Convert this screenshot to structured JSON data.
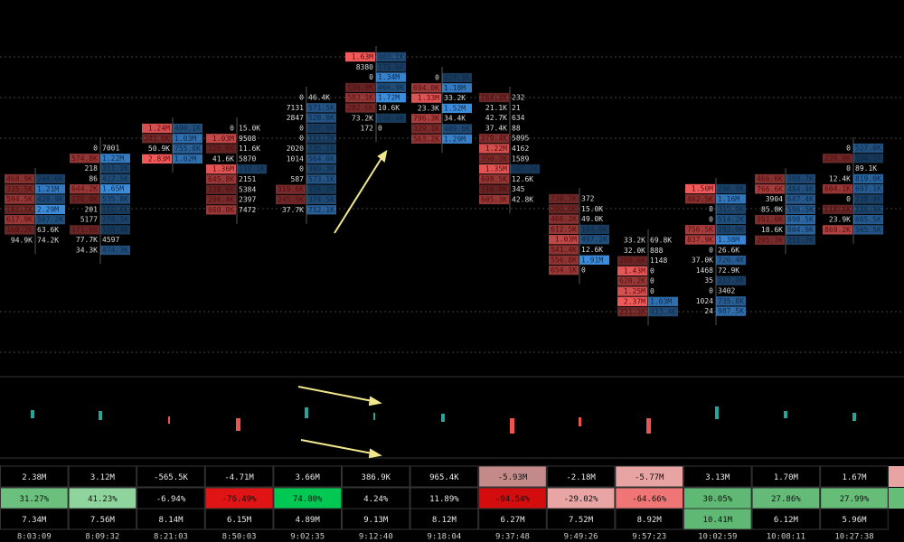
{
  "clusters": [
    {
      "rows": [
        [
          "468.9K",
          "244.6K"
        ],
        [
          "335.5K",
          "1.21M"
        ],
        [
          "594.5K",
          "429.9K"
        ],
        [
          "192.7K",
          "2.29M"
        ],
        [
          "617.9K",
          "507.2K"
        ],
        [
          "168.2K",
          "63.6K"
        ],
        [
          "94.9K",
          "74.2K"
        ]
      ]
    },
    {
      "rows": [
        [
          "0",
          "7001"
        ],
        [
          "574.8K",
          "1.22M"
        ],
        [
          "218",
          "311.1K"
        ],
        [
          "86",
          "422.5K"
        ],
        [
          "644.2K",
          "1.65M"
        ],
        [
          "170.8K",
          "535.8K"
        ],
        [
          "201",
          "152.6K"
        ],
        [
          "5177",
          "278.1K"
        ],
        [
          "171.6K",
          "119.4K"
        ],
        [
          "77.7K",
          "4597"
        ],
        [
          "34.3K",
          "474.3K"
        ]
      ]
    },
    {
      "rows": [
        [
          "1.24M",
          "490.1K"
        ],
        [
          "241.6K",
          "1.03M"
        ],
        [
          "50.9K",
          "755.6K"
        ],
        [
          "2.83M",
          "1.02M"
        ]
      ]
    },
    {
      "rows": [
        [
          "0",
          "15.0K"
        ],
        [
          "1.03M",
          "9508"
        ],
        [
          "120.0K",
          "11.6K"
        ],
        [
          "41.6K",
          "5870"
        ],
        [
          "1.36M",
          "218.1K"
        ],
        [
          "645.8K",
          "2151"
        ],
        [
          "138.6K",
          "5384"
        ],
        [
          "296.4K",
          "2397"
        ],
        [
          "660.8K",
          "7472"
        ]
      ]
    },
    {
      "rows": [
        [
          "0",
          "46.4K"
        ],
        [
          "7131",
          "571.5K"
        ],
        [
          "2847",
          "528.0K"
        ],
        [
          "0",
          "187.6K"
        ],
        [
          "0",
          "181.7K"
        ],
        [
          "2020",
          "235.1K"
        ],
        [
          "1014",
          "564.0K"
        ],
        [
          "0",
          "309.3K"
        ],
        [
          "587",
          "573.1K"
        ],
        [
          "319.6K",
          "156.2K"
        ],
        [
          "245.5K",
          "374.5K"
        ],
        [
          "37.7K",
          "752.1K"
        ]
      ]
    },
    {
      "rows": [
        [
          "1.63M",
          "403.1K"
        ],
        [
          "8380",
          "175.8K"
        ],
        [
          "0",
          "1.34M"
        ],
        [
          "130.9K",
          "466.9K"
        ],
        [
          "583.1K",
          "1.72M"
        ],
        [
          "282.6K",
          "10.6K"
        ],
        [
          "73.2K",
          "140.4K"
        ],
        [
          "172",
          "0"
        ]
      ]
    },
    {
      "rows": [
        [
          "0",
          "124.3K"
        ],
        [
          "694.0K",
          "1.18M"
        ],
        [
          "1.33M",
          "33.2K"
        ],
        [
          "23.3K",
          "1.52M"
        ],
        [
          "796.3K",
          "34.4K"
        ],
        [
          "329.1K",
          "409.6K"
        ],
        [
          "563.2K",
          "1.29M"
        ]
      ]
    },
    {
      "rows": [
        [
          "164.3K",
          "232"
        ],
        [
          "21.1K",
          "21"
        ],
        [
          "42.7K",
          "634"
        ],
        [
          "37.4K",
          "88"
        ],
        [
          "379.4K",
          "5895"
        ],
        [
          "1.22M",
          "4162"
        ],
        [
          "350.2K",
          "1589"
        ],
        [
          "1.35M",
          "102.7K"
        ],
        [
          "608.5K",
          "12.6K"
        ],
        [
          "116.0K",
          "345"
        ],
        [
          "605.3K",
          "42.8K"
        ]
      ]
    },
    {
      "rows": [
        [
          "230.7K",
          "372"
        ],
        [
          "200.6K",
          "15.0K"
        ],
        [
          "466.2K",
          "49.0K"
        ],
        [
          "612.5K",
          "184.9K"
        ],
        [
          "1.03M",
          "497.2K"
        ],
        [
          "541.4K",
          "12.6K"
        ],
        [
          "556.8K",
          "1.91M"
        ],
        [
          "654.1K",
          "0"
        ]
      ]
    },
    {
      "rows": [
        [
          "33.2K",
          "69.8K"
        ],
        [
          "32.0K",
          "888"
        ],
        [
          "200.6K",
          "1148"
        ],
        [
          "1.43M",
          "0"
        ],
        [
          "620.2K",
          "0"
        ],
        [
          "1.25M",
          "0"
        ],
        [
          "2.37M",
          "1.03M"
        ],
        [
          "251.1K",
          "413.4K"
        ]
      ]
    },
    {
      "rows": [
        [
          "1.50M",
          "290.9K"
        ],
        [
          "462.5K",
          "1.16M"
        ],
        [
          "0",
          "315.9K"
        ],
        [
          "0",
          "514.2K"
        ],
        [
          "756.5K",
          "292.9K"
        ],
        [
          "837.9K",
          "1.38M"
        ],
        [
          "0",
          "26.6K"
        ],
        [
          "37.0K",
          "726.4K"
        ],
        [
          "1468",
          "72.9K"
        ],
        [
          "35",
          "217.9K"
        ],
        [
          "0",
          "3402"
        ],
        [
          "1024",
          "735.8K"
        ],
        [
          "24",
          "987.5K"
        ]
      ]
    },
    {
      "rows": [
        [
          "466.6K",
          "388.7K"
        ],
        [
          "766.6K",
          "484.4K"
        ],
        [
          "3904",
          "647.4K"
        ],
        [
          "85.8K",
          "596.5K"
        ],
        [
          "391.0K",
          "898.5K"
        ],
        [
          "18.6K",
          "804.9K"
        ],
        [
          "295.7K",
          "211.7K"
        ]
      ]
    },
    {
      "rows": [
        [
          "0",
          "527.0K"
        ],
        [
          "220.0K",
          "104.5K"
        ],
        [
          "0",
          "89.1K"
        ],
        [
          "12.4K",
          "819.0K"
        ],
        [
          "604.1K",
          "697.1K"
        ],
        [
          "0",
          "238.4K"
        ],
        [
          "118.6K",
          "286.5K"
        ],
        [
          "23.9K",
          "665.5K"
        ],
        [
          "869.2K",
          "565.5K"
        ]
      ]
    }
  ],
  "summary": {
    "rows": [
      {
        "cells": [
          "2.38M",
          "3.12M",
          "-565.5K",
          "-4.71M",
          "3.66M",
          "386.9K",
          "965.4K",
          "-5.93M",
          "-2.18M",
          "-5.77M",
          "3.13M",
          "1.70M",
          "1.67M"
        ],
        "colors": [
          "#000000",
          "#000000",
          "#000000",
          "#000000",
          "#000000",
          "#000000",
          "#000000",
          "#c48a8a",
          "#000000",
          "#e8a3a3",
          "#000000",
          "#000000",
          "#000000"
        ]
      },
      {
        "cells": [
          "31.27%",
          "41.23%",
          "-6.94%",
          "-76.49%",
          "74.80%",
          "4.24%",
          "11.89%",
          "-94.54%",
          "-29.02%",
          "-64.66%",
          "30.05%",
          "27.86%",
          "27.99%"
        ],
        "colors": [
          "#6cc07d",
          "#8fd49c",
          "#000000",
          "#e01414",
          "#00c853",
          "#000000",
          "#000000",
          "#d30d0d",
          "#e9a4a4",
          "#f07676",
          "#5fb873",
          "#64bb77",
          "#66bd78"
        ]
      },
      {
        "cells": [
          "7.34M",
          "7.56M",
          "8.14M",
          "6.15M",
          "4.89M",
          "9.13M",
          "8.12M",
          "6.27M",
          "7.52M",
          "8.92M",
          "10.41M",
          "6.12M",
          "5.96M"
        ],
        "colors": [
          "#000000",
          "#000000",
          "#000000",
          "#000000",
          "#000000",
          "#000000",
          "#000000",
          "#000000",
          "#000000",
          "#000000",
          "#5fb873",
          "#000000",
          "#000000"
        ]
      }
    ],
    "times": [
      "8:03:09",
      "8:09:32",
      "8:21:03",
      "8:50:03",
      "9:02:35",
      "9:12:40",
      "9:18:04",
      "9:37:48",
      "9:49:26",
      "9:57:23",
      "10:02:59",
      "10:08:11",
      "10:27:38"
    ]
  }
}
